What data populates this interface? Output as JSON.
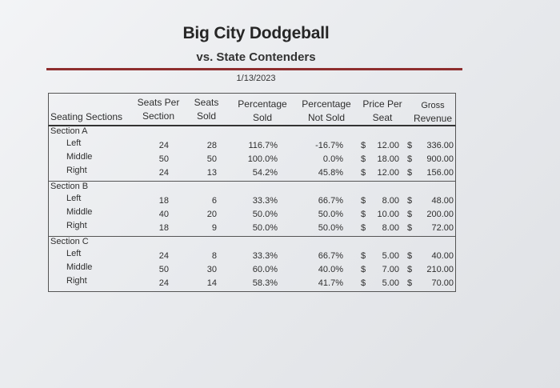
{
  "header": {
    "title": "Big City Dodgeball",
    "subtitle": "vs. State Contenders",
    "date": "1/13/2023"
  },
  "columns": {
    "seating_sections": "Seating Sections",
    "seats_per_1": "Seats Per",
    "seats_per_2": "Section",
    "seats_sold_1": "Seats",
    "seats_sold_2": "Sold",
    "pct_sold_1": "Percentage",
    "pct_sold_2": "Sold",
    "pct_not_1": "Percentage",
    "pct_not_2": "Not Sold",
    "price_1": "Price Per",
    "price_2": "Seat",
    "gross_1": "Gross",
    "gross_2": "Revenue"
  },
  "sections": [
    {
      "name": "Section A",
      "rows": [
        {
          "label": "Left",
          "per": "24",
          "sold": "28",
          "pct": "116.7%",
          "notsold": "-16.7%",
          "dollar1": "$",
          "price": "12.00",
          "dollar2": "$",
          "gross": "336.00"
        },
        {
          "label": "Middle",
          "per": "50",
          "sold": "50",
          "pct": "100.0%",
          "notsold": "0.0%",
          "dollar1": "$",
          "price": "18.00",
          "dollar2": "$",
          "gross": "900.00"
        },
        {
          "label": "Right",
          "per": "24",
          "sold": "13",
          "pct": "54.2%",
          "notsold": "45.8%",
          "dollar1": "$",
          "price": "12.00",
          "dollar2": "$",
          "gross": "156.00"
        }
      ]
    },
    {
      "name": "Section B",
      "rows": [
        {
          "label": "Left",
          "per": "18",
          "sold": "6",
          "pct": "33.3%",
          "notsold": "66.7%",
          "dollar1": "$",
          "price": "8.00",
          "dollar2": "$",
          "gross": "48.00"
        },
        {
          "label": "Middle",
          "per": "40",
          "sold": "20",
          "pct": "50.0%",
          "notsold": "50.0%",
          "dollar1": "$",
          "price": "10.00",
          "dollar2": "$",
          "gross": "200.00"
        },
        {
          "label": "Right",
          "per": "18",
          "sold": "9",
          "pct": "50.0%",
          "notsold": "50.0%",
          "dollar1": "$",
          "price": "8.00",
          "dollar2": "$",
          "gross": "72.00"
        }
      ]
    },
    {
      "name": "Section C",
      "rows": [
        {
          "label": "Left",
          "per": "24",
          "sold": "8",
          "pct": "33.3%",
          "notsold": "66.7%",
          "dollar1": "$",
          "price": "5.00",
          "dollar2": "$",
          "gross": "40.00"
        },
        {
          "label": "Middle",
          "per": "50",
          "sold": "30",
          "pct": "60.0%",
          "notsold": "40.0%",
          "dollar1": "$",
          "price": "7.00",
          "dollar2": "$",
          "gross": "210.00"
        },
        {
          "label": "Right",
          "per": "24",
          "sold": "14",
          "pct": "58.3%",
          "notsold": "41.7%",
          "dollar1": "$",
          "price": "5.00",
          "dollar2": "$",
          "gross": "70.00"
        }
      ]
    }
  ],
  "colors": {
    "accent_rule": "#8e2e2e",
    "text": "#2e2e2e"
  }
}
